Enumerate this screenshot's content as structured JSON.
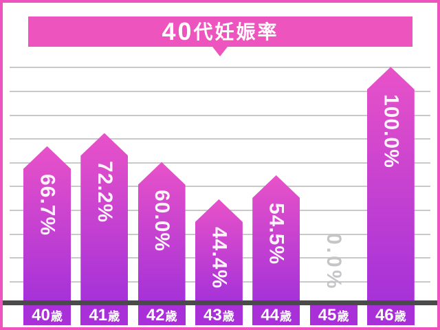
{
  "page": {
    "background_color": "#ffffff",
    "frame_border_color": "#ee54bd"
  },
  "header": {
    "title": "40代妊娠率",
    "title_num": "40",
    "title_rest": "代妊娠率",
    "banner_color": "#ee54bd",
    "pointer_icon": "down-triangle"
  },
  "chart_data": {
    "type": "bar",
    "title": "40代妊娠率",
    "categories": [
      "40歳",
      "41歳",
      "42歳",
      "43歳",
      "44歳",
      "45歳",
      "46歳"
    ],
    "category_parts": [
      {
        "num": "40",
        "suffix": "歳"
      },
      {
        "num": "41",
        "suffix": "歳"
      },
      {
        "num": "42",
        "suffix": "歳"
      },
      {
        "num": "43",
        "suffix": "歳"
      },
      {
        "num": "44",
        "suffix": "歳"
      },
      {
        "num": "45",
        "suffix": "歳"
      },
      {
        "num": "46",
        "suffix": "歳"
      }
    ],
    "values": [
      66.7,
      72.2,
      60.0,
      44.4,
      54.5,
      0.0,
      100.0
    ],
    "value_labels": [
      "66.7%",
      "72.2%",
      "60.0%",
      "44.4%",
      "54.5%",
      "0.0%",
      "100.0%"
    ],
    "xlabel": "",
    "ylabel": "",
    "ylim": [
      0,
      100
    ],
    "grid_on": true,
    "grid_step_percent": 10,
    "legend": "none",
    "bar_shape": "upward-arrow-pentagon",
    "value_label_orientation": "vertical-rotated-90deg",
    "colors": {
      "bar_gradient_top": "#e852c8",
      "bar_gradient_bottom": "#a632d8",
      "category_block": "#a92fd8",
      "axis_line": "#4a4a4b",
      "gridline": "#c9c9c9",
      "bar_value_text": "#ffffff",
      "zero_value_text": "#c5c5c7",
      "title_text": "#ffffff"
    }
  }
}
